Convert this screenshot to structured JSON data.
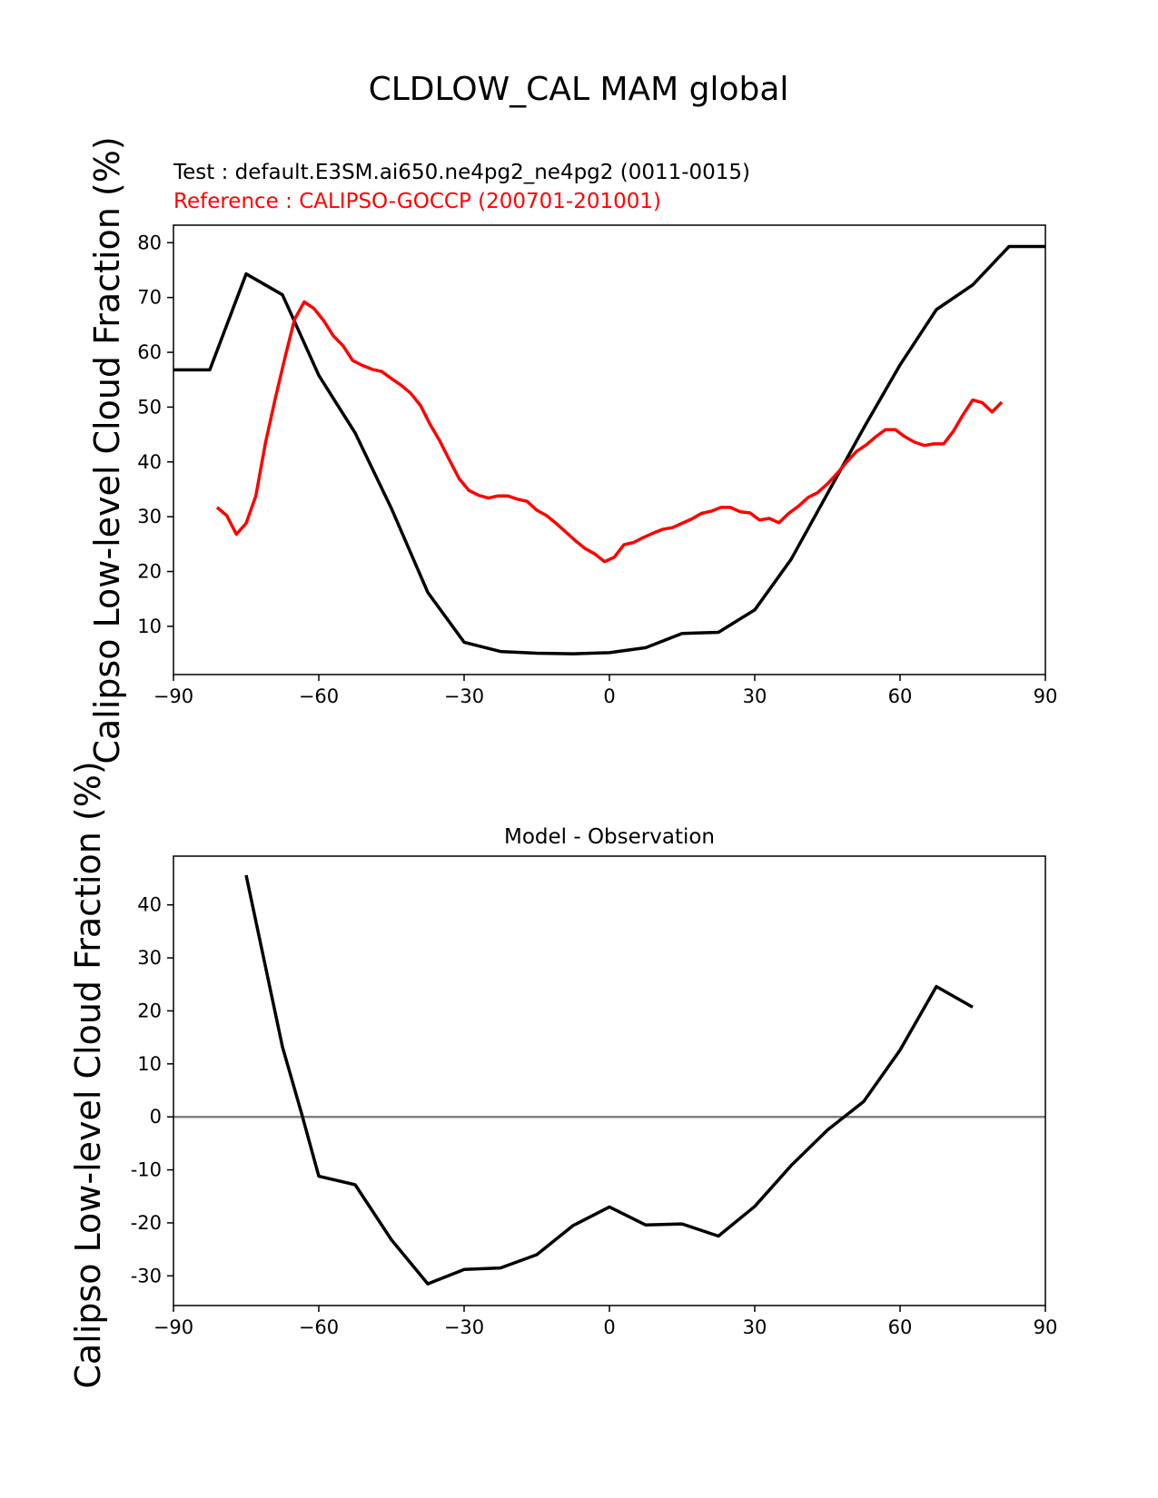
{
  "figure": {
    "title": "CLDLOW_CAL MAM global"
  },
  "chart_data": [
    {
      "type": "line",
      "test_label": "Test : default.E3SM.ai650.ne4pg2_ne4pg2 (0011-0015)",
      "reference_label": "Reference : CALIPSO-GOCCP (200701-201001)",
      "ylabel": "Calipso Low-level Cloud Fraction (%)",
      "xlim": [
        -90,
        90
      ],
      "ylim": [
        1.2,
        83.2
      ],
      "xticks": [
        -90,
        -60,
        -30,
        0,
        30,
        60,
        90
      ],
      "yticks": [
        10,
        20,
        30,
        40,
        50,
        60,
        70,
        80
      ],
      "grid": false,
      "colors": {
        "test": "#000000",
        "reference": "#ff0000"
      },
      "series": [
        {
          "role": "test",
          "x": [
            -90,
            -82.5,
            -75,
            -67.5,
            -60,
            -52.5,
            -45,
            -37.5,
            -30,
            -22.5,
            -15,
            -7.5,
            0,
            7.5,
            15,
            22.5,
            30,
            37.5,
            45,
            52.5,
            60,
            67.5,
            75,
            82.5,
            90
          ],
          "values": [
            56.8,
            56.8,
            74.3,
            70.5,
            55.8,
            45.3,
            31.5,
            16.2,
            7.1,
            5.4,
            5.1,
            5.0,
            5.2,
            6.1,
            8.7,
            8.9,
            13.0,
            22.2,
            34.2,
            46.2,
            57.7,
            67.8,
            72.3,
            79.3,
            79.3
          ]
        },
        {
          "role": "reference",
          "x": [
            -81,
            -79,
            -77,
            -75,
            -73,
            -71,
            -69,
            -67,
            -65,
            -63,
            -61,
            -59,
            -57,
            -55,
            -53,
            -51,
            -49,
            -47,
            -45,
            -43,
            -41,
            -39,
            -37,
            -35,
            -33,
            -31,
            -29,
            -27,
            -25,
            -23,
            -21,
            -19,
            -17,
            -15,
            -13,
            -11,
            -9,
            -7,
            -5,
            -3,
            -1,
            1,
            3,
            5,
            7,
            9,
            11,
            13,
            15,
            17,
            19,
            21,
            23,
            25,
            27,
            29,
            31,
            33,
            35,
            37,
            39,
            41,
            43,
            45,
            47,
            49,
            51,
            53,
            55,
            57,
            59,
            61,
            63,
            65,
            67,
            69,
            71,
            73,
            75,
            77,
            79,
            81
          ],
          "values": [
            31.7,
            30.2,
            26.8,
            28.8,
            33.8,
            43.5,
            51.5,
            59.0,
            66.0,
            69.2,
            68.0,
            65.8,
            63.0,
            61.2,
            58.5,
            57.6,
            56.9,
            56.5,
            55.2,
            54.0,
            52.5,
            50.3,
            46.8,
            43.8,
            40.3,
            36.9,
            34.8,
            33.9,
            33.4,
            33.8,
            33.8,
            33.2,
            32.8,
            31.2,
            30.2,
            28.8,
            27.2,
            25.6,
            24.2,
            23.2,
            21.8,
            22.6,
            24.9,
            25.3,
            26.2,
            27.0,
            27.7,
            28.0,
            28.8,
            29.6,
            30.6,
            31.0,
            31.7,
            31.7,
            30.9,
            30.7,
            29.4,
            29.7,
            28.9,
            30.6,
            31.9,
            33.5,
            34.4,
            36.0,
            37.9,
            40.0,
            41.9,
            43.1,
            44.6,
            45.9,
            45.9,
            44.6,
            43.6,
            43.0,
            43.3,
            43.3,
            45.6,
            48.6,
            51.3,
            50.8,
            49.1,
            50.9
          ]
        }
      ]
    },
    {
      "type": "line",
      "title": "Model - Observation",
      "ylabel": "Calipso Low-level Cloud Fraction (%)",
      "xlim": [
        -90,
        90
      ],
      "ylim": [
        -35.6,
        49.2
      ],
      "xticks": [
        -90,
        -60,
        -30,
        0,
        30,
        60,
        90
      ],
      "yticks": [
        -30,
        -20,
        -10,
        0,
        10,
        20,
        30,
        40
      ],
      "grid": false,
      "zero_line": {
        "y": 0,
        "color": "#808080"
      },
      "colors": {
        "diff": "#000000"
      },
      "series": [
        {
          "role": "diff",
          "x": [
            -75,
            -67.5,
            -63.5,
            -60,
            -52.5,
            -45,
            -37.5,
            -30,
            -22.5,
            -15,
            -7.5,
            0,
            7.5,
            15,
            22.5,
            30,
            37.5,
            45,
            52.5,
            60,
            67.5,
            75
          ],
          "values": [
            45.6,
            13.2,
            0.5,
            -11.2,
            -12.8,
            -23.2,
            -31.5,
            -28.8,
            -28.5,
            -26.0,
            -20.5,
            -17.0,
            -20.4,
            -20.2,
            -22.5,
            -16.9,
            -9.2,
            -2.5,
            2.9,
            12.6,
            24.6,
            20.7
          ]
        }
      ]
    }
  ]
}
